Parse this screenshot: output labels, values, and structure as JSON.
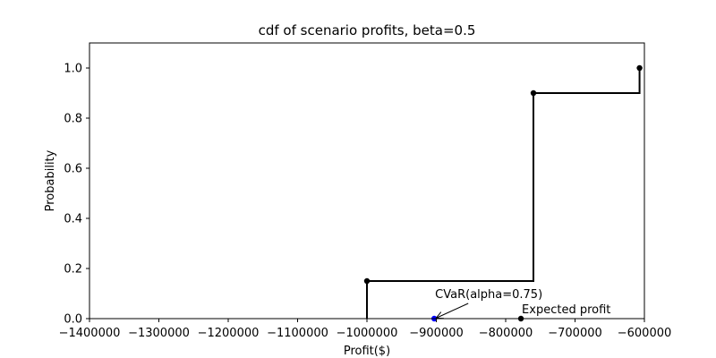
{
  "chart_data": {
    "type": "line",
    "title": "cdf of scenario profits, beta=0.5",
    "xlabel": "Profit($)",
    "ylabel": "Probability",
    "xlim": [
      -1400000,
      -600000
    ],
    "ylim": [
      0,
      1.1
    ],
    "x_ticks": [
      -1400000,
      -1300000,
      -1200000,
      -1100000,
      -1000000,
      -900000,
      -800000,
      -700000,
      -600000
    ],
    "x_tick_labels": [
      "−1400000",
      "−1300000",
      "−1200000",
      "−1100000",
      "−1000000",
      "−900000",
      "−800000",
      "−700000",
      "−600000"
    ],
    "y_ticks": [
      0.0,
      0.2,
      0.4,
      0.6,
      0.8,
      1.0
    ],
    "y_tick_labels": [
      "0.0",
      "0.2",
      "0.4",
      "0.6",
      "0.8",
      "1.0"
    ],
    "grid": false,
    "series": [
      {
        "style": "step",
        "color": "#000000",
        "points": [
          {
            "x": -1000000,
            "y": 0.15
          },
          {
            "x": -760000,
            "y": 0.9
          },
          {
            "x": -607000,
            "y": 1.0
          }
        ]
      }
    ],
    "markers": [
      {
        "x": -1000000,
        "y": 0.15,
        "color": "#000000"
      },
      {
        "x": -760000,
        "y": 0.9,
        "color": "#000000"
      },
      {
        "x": -607000,
        "y": 1.0,
        "color": "#000000"
      },
      {
        "x": -903000,
        "y": 0.0,
        "color": "#0000ff"
      },
      {
        "x": -778000,
        "y": 0.0,
        "color": "#000000"
      }
    ],
    "annotations": [
      {
        "text": "CVaR(alpha=0.75)",
        "x": -903000,
        "y": 0.0,
        "arrow": true
      },
      {
        "text": "Expected profit",
        "x": -778000,
        "y": 0.0,
        "arrow": false
      }
    ]
  }
}
